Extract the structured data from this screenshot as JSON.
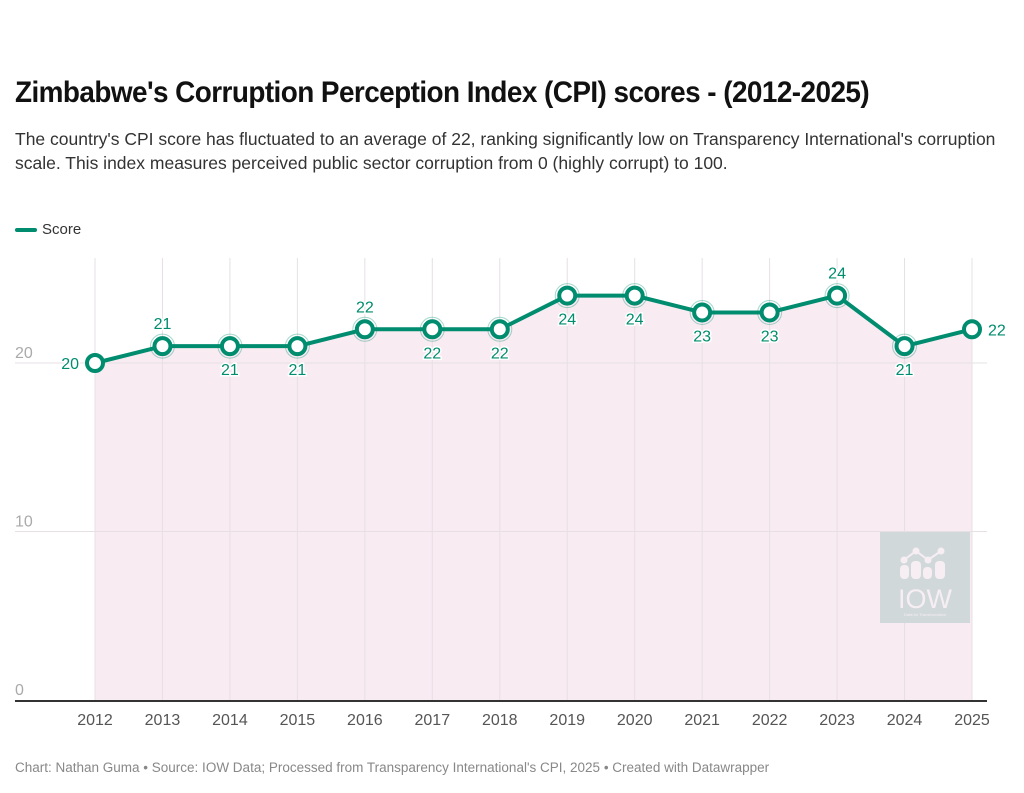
{
  "header": {
    "title": "Zimbabwe's Corruption Perception Index (CPI) scores - (2012-2025)",
    "subtitle": "The country's CPI score has fluctuated to an average of 22, ranking significantly low on Transparency International's corruption scale. This index measures perceived public sector corruption from 0 (highly corrupt) to 100."
  },
  "legend": {
    "label": "Score",
    "color": "#008c6e"
  },
  "logo": {
    "text": "IOW",
    "tagline": "Data for Transformation"
  },
  "footer": {
    "text": "Chart: Nathan Guma  • Source: IOW Data; Processed from Transparency International's CPI, 2025 • Created with Datawrapper"
  },
  "colors": {
    "line": "#008c6e",
    "area": "#f8ebf2",
    "grid": "#e6e0e4",
    "axis": "#333333",
    "tick": "#555555",
    "ytick": "#aaaaaa"
  },
  "chart_data": {
    "type": "line",
    "title": "Zimbabwe's Corruption Perception Index (CPI) scores - (2012-2025)",
    "xlabel": "",
    "ylabel": "",
    "x": [
      "2012",
      "2013",
      "2014",
      "2015",
      "2016",
      "2017",
      "2018",
      "2019",
      "2020",
      "2021",
      "2022",
      "2023",
      "2024",
      "2025"
    ],
    "series": [
      {
        "name": "Score",
        "values": [
          20,
          21,
          21,
          21,
          22,
          22,
          22,
          24,
          24,
          23,
          23,
          24,
          21,
          22
        ]
      }
    ],
    "label_positions": [
      "left",
      "above",
      "below",
      "below",
      "above",
      "below",
      "below",
      "below",
      "below",
      "below",
      "below",
      "above",
      "below",
      "right"
    ],
    "yticks": [
      0,
      10,
      20
    ],
    "ylim": [
      0,
      26
    ],
    "grid": true,
    "legend": "top-left",
    "area_fill": true
  }
}
